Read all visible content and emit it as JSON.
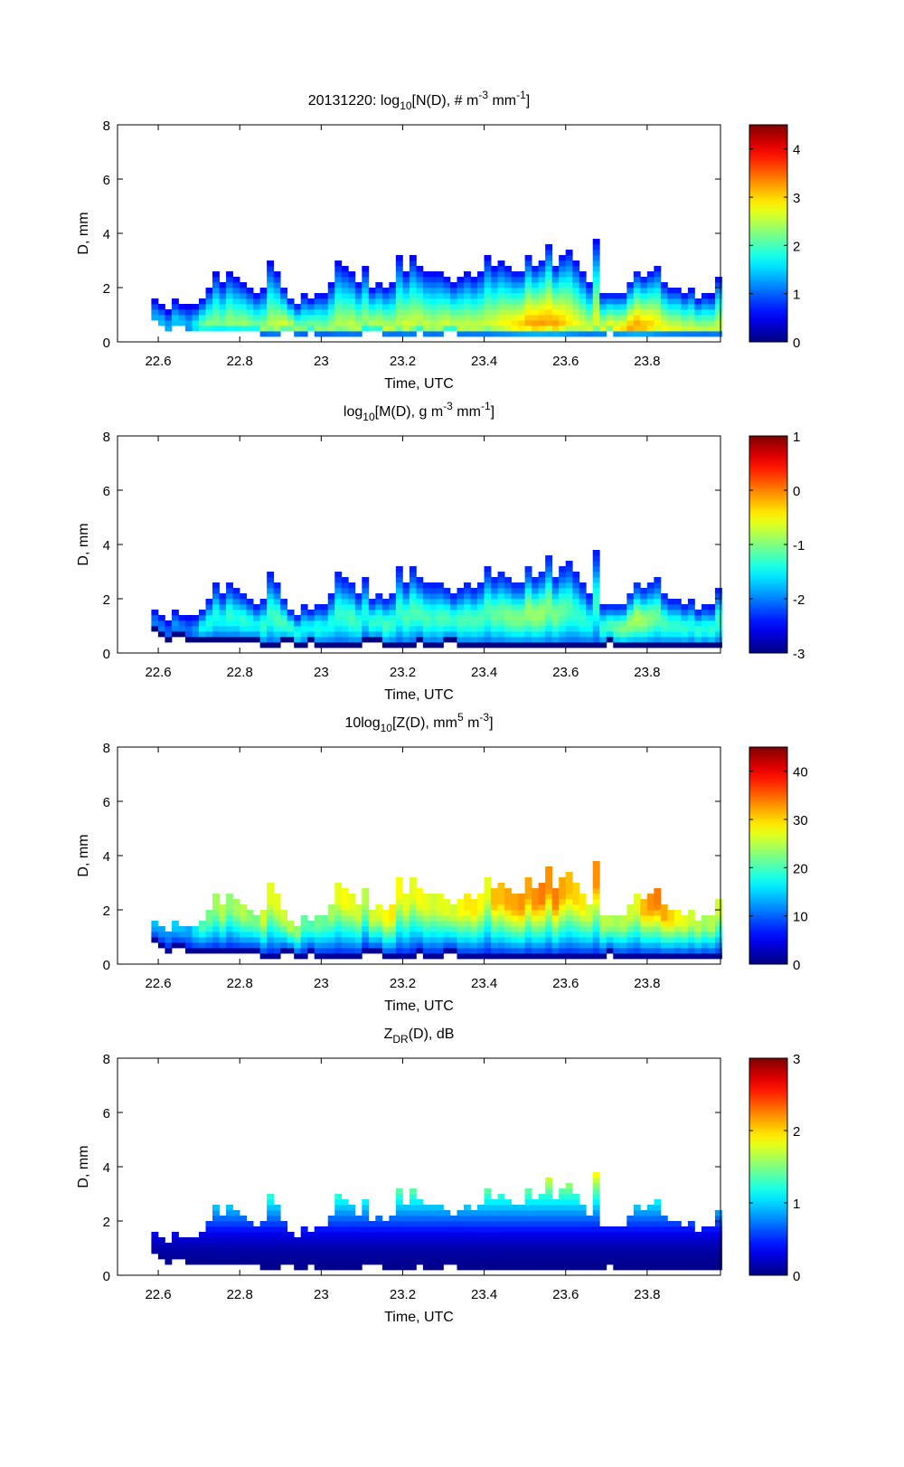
{
  "figure": {
    "date_label": "20131220"
  },
  "chart_data": [
    {
      "type": "heatmap",
      "id": "nd",
      "title_parts": [
        {
          "t": "20131220: log",
          "s": "n"
        },
        {
          "t": "10",
          "s": "sub"
        },
        {
          "t": "[N(D), # m",
          "s": "n"
        },
        {
          "t": "-3",
          "s": "sup"
        },
        {
          "t": " mm",
          "s": "n"
        },
        {
          "t": "-1",
          "s": "sup"
        },
        {
          "t": "]",
          "s": "n"
        }
      ],
      "xlabel": "Time, UTC",
      "ylabel": "D, mm",
      "xlim": [
        22.5,
        23.98
      ],
      "ylim": [
        0,
        8
      ],
      "xticks": [
        22.6,
        22.8,
        23,
        23.2,
        23.4,
        23.6,
        23.8
      ],
      "xtick_labels": [
        "22.6",
        "22.8",
        "23",
        "23.2",
        "23.4",
        "23.6",
        "23.8"
      ],
      "yticks": [
        0,
        2,
        4,
        6,
        8
      ],
      "ytick_labels": [
        "0",
        "2",
        "4",
        "6",
        "8"
      ],
      "clim": [
        0,
        4.5
      ],
      "cticks": [
        0,
        1,
        2,
        3,
        4
      ],
      "ctick_labels": [
        "0",
        "1",
        "2",
        "3",
        "4"
      ],
      "colormap": "jet",
      "profile": "decreasing",
      "peak_values": [
        1.4,
        1.5,
        1.4,
        1.6,
        1.5,
        1.4,
        1.8,
        2.2,
        2.3,
        2.3,
        2.2,
        2.4,
        2.3,
        2.4,
        2.3,
        2.2,
        2.4,
        2.5,
        2.6,
        2.7,
        2.6,
        2.5,
        2.3,
        2.3,
        2.4,
        2.3,
        2.4,
        2.5,
        2.5,
        2.6,
        2.5,
        2.4,
        2.5,
        2.5,
        2.6,
        2.5,
        2.5,
        2.7,
        2.6,
        2.6,
        2.6,
        2.5,
        2.6,
        2.6,
        2.5,
        2.6,
        2.6,
        2.6,
        2.6,
        2.6,
        2.7,
        2.8,
        2.9,
        3.0,
        3.1,
        3.2,
        3.3,
        3.3,
        3.2,
        3.3,
        3.1,
        2.9,
        2.8,
        2.7,
        2.6,
        2.7,
        2.7,
        2.8,
        2.9,
        3.0,
        3.2,
        3.3,
        3.2,
        3.1,
        2.9,
        2.8,
        2.7,
        2.7,
        2.6,
        2.6,
        2.6,
        2.5,
        2.6,
        2.6
      ],
      "edge_value": 0.3
    },
    {
      "type": "heatmap",
      "id": "md",
      "title_parts": [
        {
          "t": "log",
          "s": "n"
        },
        {
          "t": "10",
          "s": "sub"
        },
        {
          "t": "[M(D), g m",
          "s": "n"
        },
        {
          "t": "-3",
          "s": "sup"
        },
        {
          "t": " mm",
          "s": "n"
        },
        {
          "t": "-1",
          "s": "sup"
        },
        {
          "t": "]",
          "s": "n"
        }
      ],
      "xlabel": "Time, UTC",
      "ylabel": "D, mm",
      "xlim": [
        22.5,
        23.98
      ],
      "ylim": [
        0,
        8
      ],
      "xticks": [
        22.6,
        22.8,
        23,
        23.2,
        23.4,
        23.6,
        23.8
      ],
      "xtick_labels": [
        "22.6",
        "22.8",
        "23",
        "23.2",
        "23.4",
        "23.6",
        "23.8"
      ],
      "yticks": [
        0,
        2,
        4,
        6,
        8
      ],
      "ytick_labels": [
        "0",
        "2",
        "4",
        "6",
        "8"
      ],
      "clim": [
        -3,
        1
      ],
      "cticks": [
        -3,
        -2,
        -1,
        0,
        1
      ],
      "ctick_labels": [
        "-3",
        "-2",
        "-1",
        "0",
        "1"
      ],
      "colormap": "jet",
      "profile": "mid-peak",
      "peak_values": [
        -2.0,
        -2.0,
        -2.1,
        -1.9,
        -2.0,
        -2.1,
        -1.9,
        -1.5,
        -1.4,
        -1.4,
        -1.5,
        -1.3,
        -1.4,
        -1.3,
        -1.4,
        -1.5,
        -1.3,
        -1.3,
        -1.2,
        -1.2,
        -1.3,
        -1.4,
        -1.5,
        -1.5,
        -1.4,
        -1.5,
        -1.4,
        -1.3,
        -1.3,
        -1.2,
        -1.3,
        -1.4,
        -1.3,
        -1.3,
        -1.2,
        -1.3,
        -1.3,
        -1.2,
        -1.2,
        -1.2,
        -1.2,
        -1.3,
        -1.2,
        -1.2,
        -1.3,
        -1.2,
        -1.2,
        -1.2,
        -1.2,
        -1.2,
        -1.1,
        -1.1,
        -1.0,
        -1.0,
        -1.0,
        -0.9,
        -0.9,
        -0.9,
        -1.0,
        -1.0,
        -1.1,
        -1.2,
        -1.3,
        -1.3,
        -1.4,
        -1.3,
        -1.3,
        -1.2,
        -1.1,
        -1.0,
        -0.9,
        -0.8,
        -0.9,
        -1.0,
        -1.1,
        -1.2,
        -1.3,
        -1.3,
        -1.3,
        -1.4,
        -1.3,
        -1.4,
        -1.3,
        -1.3
      ],
      "edge_value": -2.6
    },
    {
      "type": "heatmap",
      "id": "zd",
      "title_parts": [
        {
          "t": "10log",
          "s": "n"
        },
        {
          "t": "10",
          "s": "sub"
        },
        {
          "t": "[Z(D),  mm",
          "s": "n"
        },
        {
          "t": "5",
          "s": "sup"
        },
        {
          "t": " m",
          "s": "n"
        },
        {
          "t": "-3",
          "s": "sup"
        },
        {
          "t": "]",
          "s": "n"
        }
      ],
      "xlabel": "Time, UTC",
      "ylabel": "D, mm",
      "xlim": [
        22.5,
        23.98
      ],
      "ylim": [
        0,
        8
      ],
      "xticks": [
        22.6,
        22.8,
        23,
        23.2,
        23.4,
        23.6,
        23.8
      ],
      "xtick_labels": [
        "22.6",
        "22.8",
        "23",
        "23.2",
        "23.4",
        "23.6",
        "23.8"
      ],
      "yticks": [
        0,
        2,
        4,
        6,
        8
      ],
      "ytick_labels": [
        "0",
        "2",
        "4",
        "6",
        "8"
      ],
      "clim": [
        0,
        45
      ],
      "cticks": [
        0,
        10,
        20,
        30,
        40
      ],
      "ctick_labels": [
        "0",
        "10",
        "20",
        "30",
        "40"
      ],
      "colormap": "jet",
      "profile": "increasing",
      "peak_values": [
        14,
        13,
        12,
        15,
        14,
        13,
        16,
        20,
        22,
        24,
        25,
        23,
        24,
        25,
        23,
        22,
        26,
        27,
        27,
        26,
        25,
        23,
        21,
        20,
        22,
        21,
        24,
        27,
        28,
        27,
        26,
        25,
        26,
        27,
        28,
        29,
        28,
        27,
        27,
        28,
        27,
        26,
        27,
        27,
        26,
        28,
        29,
        29,
        28,
        27,
        31,
        31,
        32,
        32,
        33,
        32,
        33,
        34,
        33,
        34,
        32,
        31,
        30,
        29,
        26,
        33,
        25,
        25,
        24,
        25,
        26,
        27,
        31,
        33,
        34,
        32,
        30,
        28,
        27,
        26,
        25,
        24,
        25,
        26
      ],
      "edge_value": 3
    },
    {
      "type": "heatmap",
      "id": "zdr",
      "title_parts": [
        {
          "t": "Z",
          "s": "n"
        },
        {
          "t": "DR",
          "s": "sub"
        },
        {
          "t": "(D), dB",
          "s": "n"
        }
      ],
      "xlabel": "Time, UTC",
      "ylabel": "D, mm",
      "xlim": [
        22.5,
        23.98
      ],
      "ylim": [
        0,
        8
      ],
      "xticks": [
        22.6,
        22.8,
        23,
        23.2,
        23.4,
        23.6,
        23.8
      ],
      "xtick_labels": [
        "22.6",
        "22.8",
        "23",
        "23.2",
        "23.4",
        "23.6",
        "23.8"
      ],
      "yticks": [
        0,
        2,
        4,
        6,
        8
      ],
      "ytick_labels": [
        "0",
        "2",
        "4",
        "6",
        "8"
      ],
      "clim": [
        0,
        3
      ],
      "cticks": [
        0,
        1,
        2,
        3
      ],
      "ctick_labels": [
        "0",
        "1",
        "2",
        "3"
      ],
      "colormap": "jet",
      "profile": "diameter-function",
      "zdr_by_diameter": {
        "D": [
          0,
          1,
          1.5,
          2,
          2.5,
          3,
          3.5,
          4
        ],
        "zdr": [
          0.0,
          0.12,
          0.3,
          0.62,
          0.95,
          1.3,
          1.7,
          2.1
        ]
      }
    }
  ],
  "grid": {
    "time_start": 22.583,
    "time_step_hours": 0.01667,
    "d_step_mm": 0.2,
    "column_top_D": [
      1.6,
      1.4,
      1.2,
      1.6,
      1.4,
      1.4,
      1.4,
      1.6,
      2.0,
      2.6,
      2.2,
      2.6,
      2.4,
      2.2,
      2.0,
      1.8,
      2.0,
      3.0,
      2.6,
      2.0,
      1.6,
      1.4,
      1.8,
      1.6,
      1.8,
      1.8,
      2.2,
      3.0,
      2.8,
      2.6,
      2.2,
      2.8,
      2.0,
      2.2,
      2.0,
      2.2,
      3.2,
      2.6,
      3.2,
      2.8,
      2.6,
      2.6,
      2.6,
      2.4,
      2.2,
      2.4,
      2.6,
      2.4,
      2.6,
      3.2,
      2.8,
      3.0,
      2.8,
      2.6,
      2.6,
      3.2,
      2.8,
      3.0,
      3.6,
      2.8,
      3.2,
      3.4,
      3.0,
      2.6,
      2.2,
      3.8,
      1.8,
      1.8,
      1.8,
      1.8,
      2.2,
      2.6,
      2.4,
      2.6,
      2.8,
      2.2,
      2.0,
      2.0,
      1.8,
      2.0,
      1.6,
      1.8,
      1.7,
      2.4
    ],
    "column_bottom_D": [
      0.8,
      0.6,
      0.4,
      0.6,
      0.6,
      0.4,
      0.4,
      0.4,
      0.4,
      0.4,
      0.4,
      0.4,
      0.4,
      0.4,
      0.4,
      0.4,
      0.2,
      0.2,
      0.2,
      0.4,
      0.4,
      0.2,
      0.2,
      0.4,
      0.2,
      0.2,
      0.2,
      0.2,
      0.2,
      0.2,
      0.2,
      0.4,
      0.4,
      0.4,
      0.2,
      0.2,
      0.2,
      0.2,
      0.2,
      0.4,
      0.2,
      0.2,
      0.2,
      0.4,
      0.4,
      0.2,
      0.2,
      0.2,
      0.2,
      0.2,
      0.2,
      0.2,
      0.2,
      0.2,
      0.2,
      0.2,
      0.2,
      0.2,
      0.2,
      0.2,
      0.2,
      0.2,
      0.2,
      0.2,
      0.2,
      0.2,
      0.2,
      0.4,
      0.2,
      0.2,
      0.2,
      0.2,
      0.2,
      0.2,
      0.2,
      0.2,
      0.2,
      0.2,
      0.2,
      0.2,
      0.2,
      0.2,
      0.2,
      0.2
    ]
  }
}
